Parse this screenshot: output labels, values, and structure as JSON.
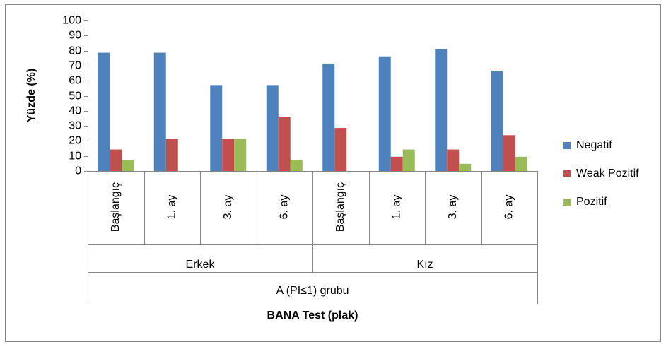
{
  "chart_data": {
    "type": "bar",
    "y_label": "Yüzde (%)",
    "x_label": "BANA Test (plak)",
    "supergroup": "A (PI≤1) grubu",
    "groups": [
      {
        "name": "Erkek",
        "categories": [
          "Başlangıç",
          "1. ay",
          "3. ay",
          "6. ay"
        ]
      },
      {
        "name": "Kız",
        "categories": [
          "Başlangıç",
          "1. ay",
          "3. ay",
          "6. ay"
        ]
      }
    ],
    "series": [
      {
        "name": "Negatif",
        "color": "#4f81bd",
        "values": [
          78.6,
          78.6,
          57.1,
          57.1,
          71.4,
          76.2,
          81,
          66.7
        ]
      },
      {
        "name": "Weak Pozitif",
        "color": "#c0504d",
        "values": [
          14.3,
          21.4,
          21.4,
          35.7,
          28.6,
          9.5,
          14.3,
          23.8
        ]
      },
      {
        "name": "Pozitif",
        "color": "#9bbb59",
        "values": [
          7.1,
          0,
          21.4,
          7.1,
          0,
          14.3,
          4.8,
          9.5
        ]
      }
    ],
    "ylim": [
      0,
      100
    ],
    "yticks": [
      0,
      10,
      20,
      30,
      40,
      50,
      60,
      70,
      80,
      90,
      100
    ],
    "grid": false,
    "legend": "right"
  }
}
